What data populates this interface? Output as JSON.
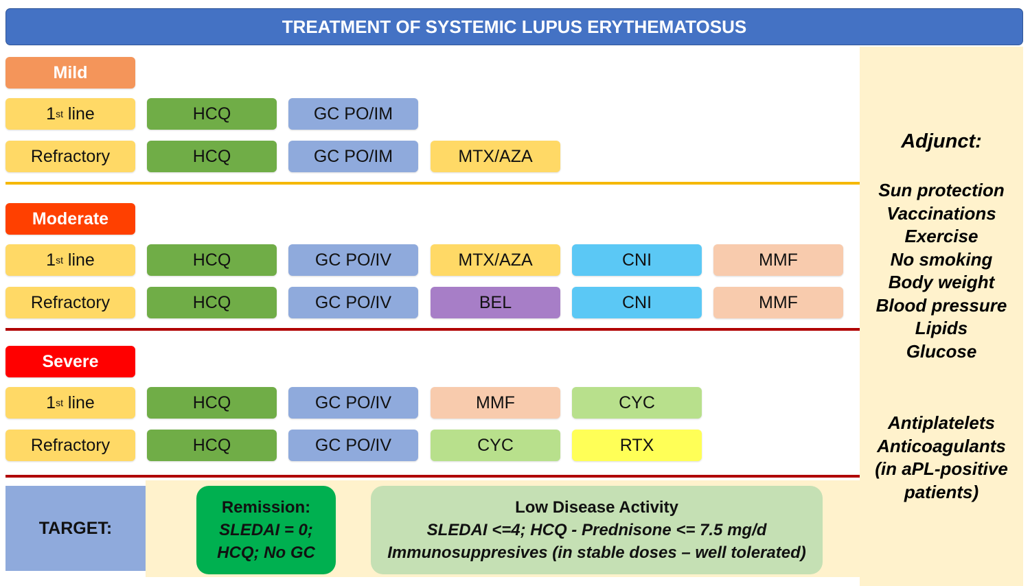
{
  "title": "TREATMENT OF SYSTEMIC LUPUS ERYTHEMATOSUS",
  "colors": {
    "header": "#4472c4",
    "mild": "#f4955a",
    "moderate": "#ff4000",
    "severe": "#ff0000",
    "line_label": "#ffd966",
    "HCQ": "#70ad47",
    "GC": "#8faadc",
    "MTX_AZA": "#ffd966",
    "CNI": "#5bc8f5",
    "MMF": "#f8cbad",
    "BEL": "#a77ec7",
    "CYC": "#b8e08c",
    "RTX": "#ffff57",
    "sep_mild": "#f5b800",
    "sep_other": "#b00000",
    "adjunct_bg": "#fff2cc"
  },
  "sections": [
    {
      "severity": "Mild",
      "rows": [
        {
          "line": "1",
          "line_sup": "st",
          "line_rest": " line",
          "drugs": [
            "HCQ",
            "GC PO/IM"
          ]
        },
        {
          "line": "Refractory",
          "line_sup": "",
          "line_rest": "",
          "drugs": [
            "HCQ",
            "GC PO/IM",
            "MTX/AZA"
          ]
        }
      ]
    },
    {
      "severity": "Moderate",
      "rows": [
        {
          "line": "1",
          "line_sup": "st",
          "line_rest": " line",
          "drugs": [
            "HCQ",
            "GC PO/IV",
            "MTX/AZA",
            "CNI",
            "MMF"
          ]
        },
        {
          "line": "Refractory",
          "line_sup": "",
          "line_rest": "",
          "drugs": [
            "HCQ",
            "GC PO/IV",
            "BEL",
            "CNI",
            "MMF"
          ]
        }
      ]
    },
    {
      "severity": "Severe",
      "rows": [
        {
          "line": "1",
          "line_sup": "st",
          "line_rest": " line",
          "drugs": [
            "HCQ",
            "GC PO/IV",
            "MMF",
            "CYC"
          ]
        },
        {
          "line": "Refractory",
          "line_sup": "",
          "line_rest": "",
          "drugs": [
            "HCQ",
            "GC PO/IV",
            "CYC",
            "RTX"
          ]
        }
      ]
    }
  ],
  "adjunct": {
    "title": "Adjunct:",
    "items": [
      "Sun protection",
      "Vaccinations",
      "Exercise",
      "No smoking",
      "Body weight",
      "Blood pressure",
      "Lipids",
      "Glucose"
    ],
    "extra": [
      "Antiplatelets",
      "Anticoagulants",
      "(in aPL-positive",
      "patients)"
    ]
  },
  "target": {
    "label": "TARGET:",
    "remission": {
      "title": "Remission:",
      "line1": "SLEDAI = 0;",
      "line2": "HCQ; No GC"
    },
    "lda": {
      "title": "Low Disease Activity",
      "line1": "SLEDAI <=4; HCQ - Prednisone <= 7.5 mg/d",
      "line2": "Immunosuppresives (in stable doses – well tolerated)"
    }
  }
}
